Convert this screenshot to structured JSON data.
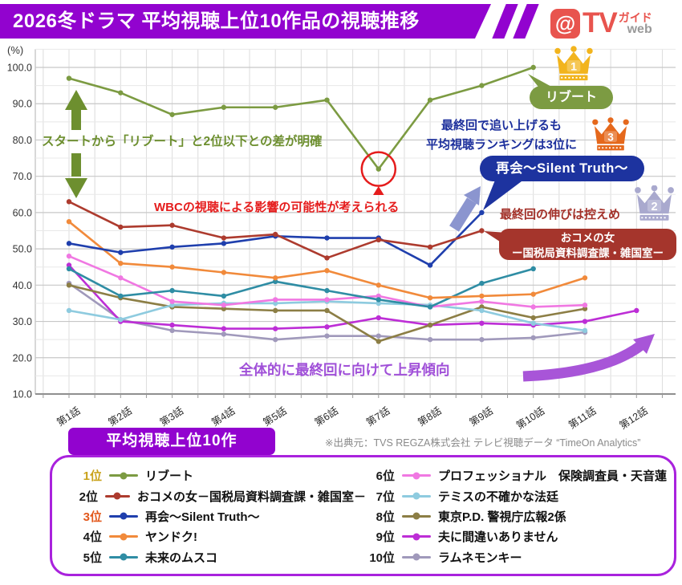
{
  "header": {
    "title": "2026冬ドラマ 平均視聴上位10作品の視聴推移",
    "bar_color": "#9203cf",
    "logo": {
      "at": "@",
      "tv": "TV",
      "guide": "ガイド",
      "web": "web"
    }
  },
  "chart_data": {
    "type": "line",
    "y_unit": "(%)",
    "ylim": [
      10,
      105
    ],
    "grid": "on",
    "y_ticks": [
      "100.0",
      "90.0",
      "80.0",
      "70.0",
      "60.0",
      "50.0",
      "40.0",
      "30.0",
      "20.0",
      "10.0"
    ],
    "x_categories": [
      "第1話",
      "第2話",
      "第3話",
      "第4話",
      "第5話",
      "第6話",
      "第7話",
      "第8話",
      "第9話",
      "第10話",
      "第11話",
      "第12話"
    ],
    "series": [
      {
        "rank": "1位",
        "name": "リブート",
        "color": "#7c9b42",
        "values": [
          97,
          93,
          87,
          89,
          89,
          91,
          72,
          91,
          95,
          100
        ]
      },
      {
        "rank": "2位",
        "name": "おコメの女－国税局資料調査課・雑国室－",
        "color": "#ad3b2e",
        "values": [
          63,
          56,
          56.5,
          53,
          54,
          47.5,
          52.5,
          50.5,
          55
        ]
      },
      {
        "rank": "3位",
        "name": "再会〜Silent Truth〜",
        "color": "#1f3fad",
        "values": [
          51.5,
          49,
          50.5,
          51.5,
          53.5,
          53,
          53,
          45.5,
          60
        ]
      },
      {
        "rank": "4位",
        "name": "ヤンドク!",
        "color": "#f18a3b",
        "values": [
          57.5,
          46,
          45,
          43.5,
          42,
          44,
          40,
          36.5,
          37,
          37.5,
          42
        ]
      },
      {
        "rank": "5位",
        "name": "未来のムスコ",
        "color": "#2f8da4",
        "values": [
          44.5,
          37,
          38.5,
          37,
          41,
          38.5,
          36,
          34,
          40.5,
          44.5
        ]
      },
      {
        "rank": "6位",
        "name": "プロフェッショナル　保険調査員・天音蓮",
        "color": "#f078e2",
        "values": [
          48,
          42,
          35.5,
          34.5,
          36,
          36,
          37,
          34,
          35.5,
          34,
          34.5
        ]
      },
      {
        "rank": "7位",
        "name": "テミスの不確かな法廷",
        "color": "#8ecbdf",
        "values": [
          33,
          30.5,
          34.5,
          35,
          35,
          35.5,
          35,
          34.5,
          33,
          29.5,
          27.5
        ]
      },
      {
        "rank": "8位",
        "name": "東京P.D. 警視庁広報2係",
        "color": "#8c7e45",
        "values": [
          40,
          36.5,
          34,
          33.5,
          33,
          33,
          24.5,
          29,
          34,
          31,
          33.5
        ]
      },
      {
        "rank": "9位",
        "name": "夫に間違いありません",
        "color": "#bd2ed6",
        "values": [
          45.5,
          30,
          29,
          28,
          28,
          28.5,
          31,
          29,
          29.5,
          29,
          30,
          33
        ]
      },
      {
        "rank": "10位",
        "name": "ラムネモンキー",
        "color": "#a099bb",
        "values": [
          40.5,
          30.5,
          27.5,
          26.5,
          25,
          26,
          26,
          25,
          25,
          25.5,
          27
        ]
      }
    ]
  },
  "annotations": {
    "start_gap": "スタートから「リブート」と2位以下との差が明確",
    "wbc": "WBCの視聴による影響の可能性が考えられる",
    "final_push_line1": "最終回で追い上げるも",
    "final_push_line2": "平均視聴ランキングは3位に",
    "modest_growth": "最終回の伸びは控えめ",
    "overall_trend": "全体的に最終回に向けて上昇傾向",
    "crown1": {
      "number": "1",
      "color": "#f2b41d",
      "label": "リブート"
    },
    "crown3": {
      "number": "3",
      "color": "#e5681c",
      "label": "再会〜Silent Truth〜"
    },
    "crown2": {
      "number": "2",
      "color": "#a9a9ce",
      "label_line1": "おコメの女",
      "label_line2": "ー国税局資料調査課・雑国室ー"
    }
  },
  "footer": {
    "legend_title": "平均視聴上位10作",
    "source": "※出典元：TVS REGZA株式会社 テレビ視聴データ “TimeOn Analytics”",
    "box_color": "#9203cf",
    "border_color": "#a922dd",
    "legend": [
      {
        "rank": "1位",
        "rank_color": "#c9a21b",
        "color": "#7c9b42",
        "label": "リブート"
      },
      {
        "rank": "2位",
        "rank_color": "#1a1a1a",
        "color": "#ad3b2e",
        "label": "おコメの女－国税局資料調査課・雑国室－"
      },
      {
        "rank": "3位",
        "rank_color": "#e2581c",
        "color": "#1f3fad",
        "label": "再会〜Silent Truth〜"
      },
      {
        "rank": "4位",
        "rank_color": "#1a1a1a",
        "color": "#f18a3b",
        "label": "ヤンドク!"
      },
      {
        "rank": "5位",
        "rank_color": "#1a1a1a",
        "color": "#2f8da4",
        "label": "未来のムスコ"
      },
      {
        "rank": "6位",
        "rank_color": "#1a1a1a",
        "color": "#f078e2",
        "label": "プロフェッショナル　保険調査員・天音蓮"
      },
      {
        "rank": "7位",
        "rank_color": "#1a1a1a",
        "color": "#8ecbdf",
        "label": "テミスの不確かな法廷"
      },
      {
        "rank": "8位",
        "rank_color": "#1a1a1a",
        "color": "#8c7e45",
        "label": "東京P.D. 警視庁広報2係"
      },
      {
        "rank": "9位",
        "rank_color": "#1a1a1a",
        "color": "#bd2ed6",
        "label": "夫に間違いありません"
      },
      {
        "rank": "10位",
        "rank_color": "#1a1a1a",
        "color": "#a099bb",
        "label": "ラムネモンキー"
      }
    ]
  }
}
